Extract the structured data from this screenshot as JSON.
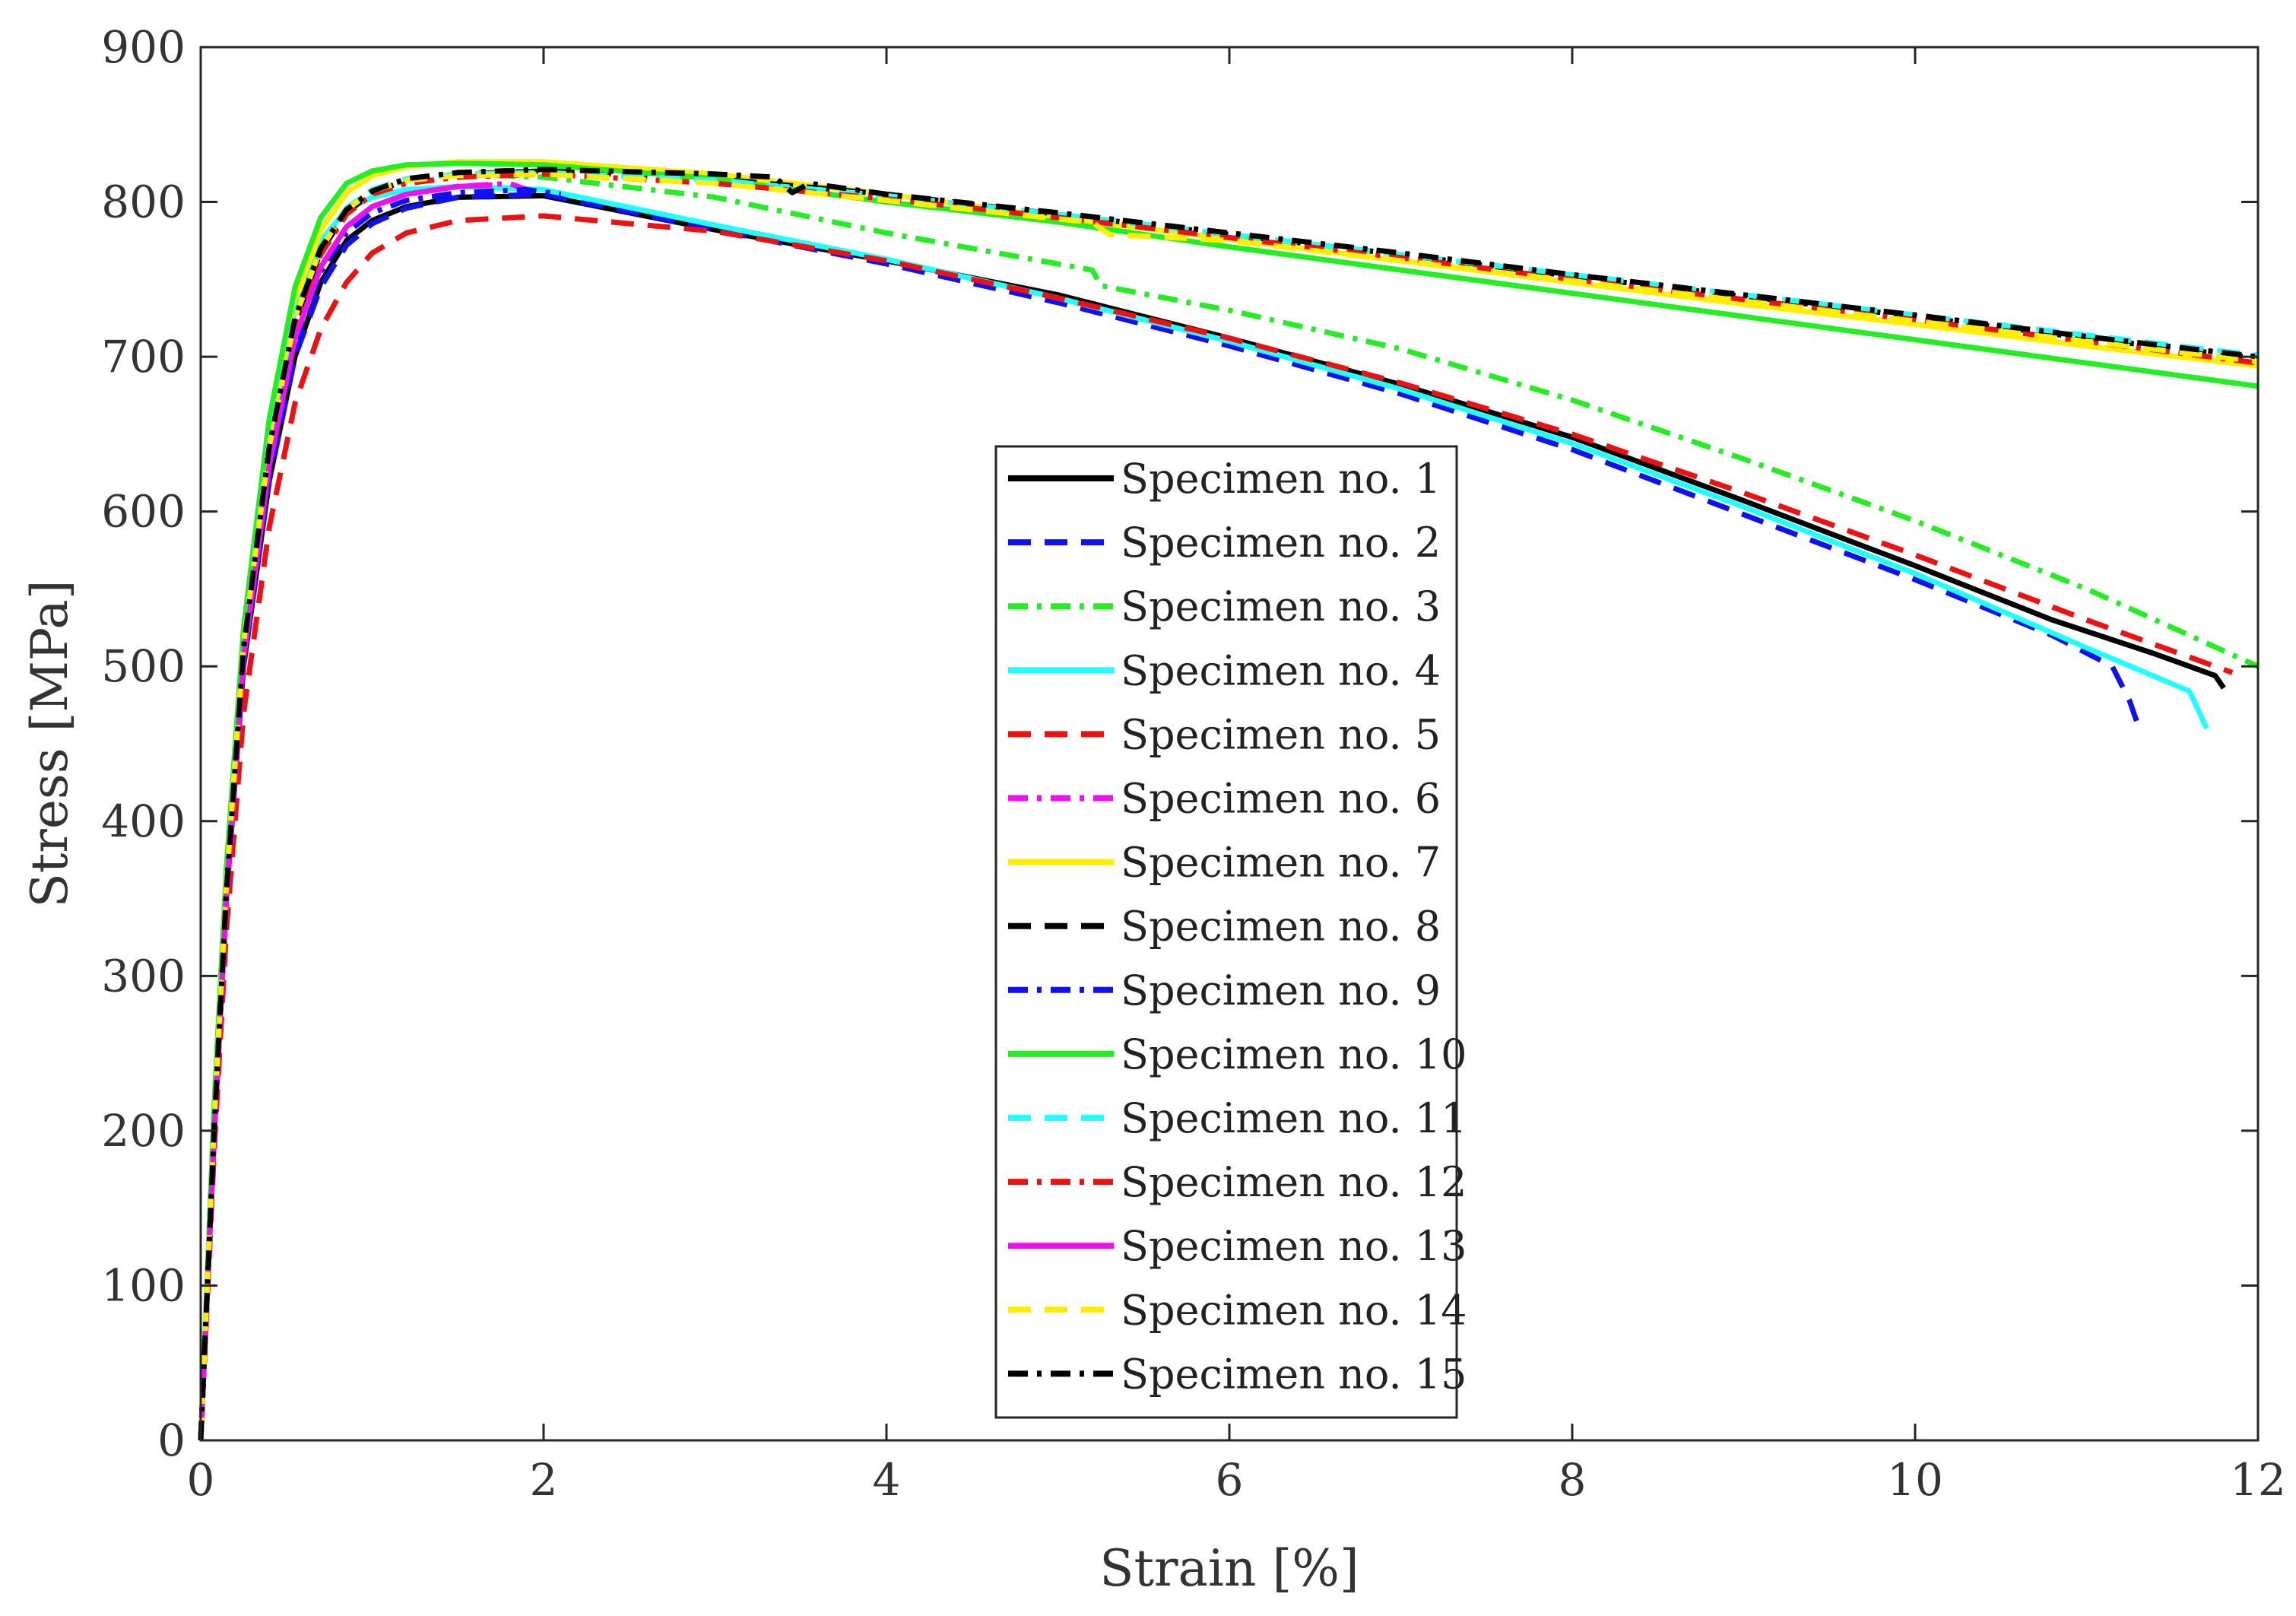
{
  "chart_data": {
    "type": "line",
    "title": "",
    "xlabel": "Strain [%]",
    "ylabel": "Stress [MPa]",
    "xlim": [
      0,
      12
    ],
    "ylim": [
      0,
      900
    ],
    "xticks": [
      0,
      2,
      4,
      6,
      8,
      10,
      12
    ],
    "yticks": [
      0,
      100,
      200,
      300,
      400,
      500,
      600,
      700,
      800,
      900
    ],
    "grid": false,
    "legend_position": "center",
    "series": [
      {
        "name": "Specimen no. 1",
        "color": "#000000",
        "dash": "solid",
        "x": [
          0,
          0.08,
          0.15,
          0.25,
          0.4,
          0.55,
          0.7,
          0.85,
          1.0,
          1.2,
          1.5,
          2.0,
          3.0,
          4.0,
          5.0,
          6.0,
          7.0,
          8.0,
          9.0,
          10.0,
          10.8,
          11.4,
          11.75,
          11.8
        ],
        "y": [
          0,
          200,
          350,
          500,
          620,
          700,
          748,
          775,
          788,
          797,
          803,
          804,
          782,
          762,
          740,
          712,
          682,
          648,
          607,
          565,
          530,
          508,
          494,
          486
        ]
      },
      {
        "name": "Specimen no. 2",
        "color": "#1010f0",
        "dash": "dashed",
        "x": [
          0,
          0.08,
          0.15,
          0.25,
          0.4,
          0.55,
          0.7,
          0.85,
          1.0,
          1.2,
          1.5,
          2.0,
          3.0,
          4.0,
          5.0,
          6.0,
          7.0,
          8.0,
          9.0,
          10.0,
          10.8,
          11.15,
          11.25,
          11.3
        ],
        "y": [
          0,
          200,
          350,
          500,
          620,
          700,
          745,
          772,
          786,
          796,
          803,
          805,
          782,
          760,
          735,
          707,
          676,
          640,
          598,
          556,
          520,
          500,
          478,
          462
        ]
      },
      {
        "name": "Specimen no. 3",
        "color": "#22ee22",
        "dash": "dashdot",
        "x": [
          0,
          0.08,
          0.15,
          0.25,
          0.4,
          0.55,
          0.7,
          0.85,
          1.0,
          1.2,
          1.5,
          2.0,
          3.0,
          4.0,
          5.0,
          5.2,
          5.25,
          6.0,
          7.0,
          8.0,
          9.0,
          10.0,
          11.0,
          12.0
        ],
        "y": [
          0,
          210,
          360,
          510,
          640,
          725,
          768,
          795,
          808,
          814,
          818,
          816,
          803,
          780,
          760,
          756,
          746,
          730,
          705,
          672,
          634,
          594,
          550,
          500
        ]
      },
      {
        "name": "Specimen no. 4",
        "color": "#22ffff",
        "dash": "solid",
        "x": [
          0,
          0.08,
          0.15,
          0.25,
          0.4,
          0.55,
          0.7,
          0.85,
          1.0,
          1.2,
          1.5,
          2.0,
          3.0,
          4.0,
          5.0,
          6.0,
          7.0,
          8.0,
          9.0,
          10.0,
          11.0,
          11.6,
          11.7
        ],
        "y": [
          0,
          210,
          360,
          515,
          645,
          730,
          775,
          795,
          803,
          808,
          810,
          808,
          785,
          763,
          738,
          710,
          679,
          644,
          603,
          560,
          512,
          484,
          460
        ]
      },
      {
        "name": "Specimen no. 5",
        "color": "#ee1111",
        "dash": "dashed",
        "x": [
          0,
          0.08,
          0.15,
          0.25,
          0.4,
          0.55,
          0.7,
          0.85,
          1.0,
          1.2,
          1.5,
          2.0,
          3.0,
          4.0,
          5.0,
          6.0,
          7.0,
          8.0,
          9.0,
          10.0,
          11.0,
          11.85
        ],
        "y": [
          0,
          190,
          330,
          470,
          590,
          670,
          718,
          748,
          767,
          780,
          788,
          791,
          781,
          762,
          738,
          712,
          683,
          650,
          612,
          572,
          530,
          496
        ]
      },
      {
        "name": "Specimen no. 6",
        "color": "#ee11ee",
        "dash": "dashdot",
        "x": [
          0,
          0.08,
          0.15,
          0.25,
          0.4,
          0.55,
          0.7,
          0.85,
          1.0,
          1.2,
          1.5,
          1.8,
          1.9
        ],
        "y": [
          0,
          200,
          350,
          505,
          630,
          712,
          758,
          784,
          797,
          805,
          810,
          812,
          808
        ]
      },
      {
        "name": "Specimen no. 7",
        "color": "#ffee00",
        "dash": "solid",
        "x": [
          0,
          0.08,
          0.15,
          0.25,
          0.4,
          0.55,
          0.7,
          0.85,
          1.0,
          1.2,
          1.5,
          2.0,
          3.0,
          4.0,
          5.0,
          6.0,
          7.0,
          8.0,
          9.0,
          10.0,
          11.0,
          12.0
        ],
        "y": [
          0,
          215,
          365,
          520,
          650,
          735,
          782,
          806,
          817,
          823,
          826,
          826,
          818,
          805,
          790,
          776,
          762,
          748,
          734,
          721,
          707,
          694
        ]
      },
      {
        "name": "Specimen no. 8",
        "color": "#000000",
        "dash": "dashed",
        "x": [
          0,
          0.08,
          0.15,
          0.25,
          0.4,
          0.55,
          0.7,
          0.85,
          1.0,
          1.2,
          1.5,
          2.0,
          3.0,
          4.0,
          5.0,
          6.0,
          7.0,
          8.0,
          9.0,
          10.0,
          11.0,
          12.0
        ],
        "y": [
          0,
          205,
          355,
          510,
          640,
          722,
          768,
          793,
          806,
          814,
          818,
          820,
          815,
          805,
          792,
          779,
          766,
          752,
          739,
          726,
          712,
          699
        ]
      },
      {
        "name": "Specimen no. 9",
        "color": "#1010f0",
        "dash": "dashdot",
        "x": [
          0,
          0.08,
          0.15,
          0.25,
          0.4,
          0.55,
          0.7,
          0.85,
          1.0,
          1.2,
          1.5,
          1.9,
          2.1
        ],
        "y": [
          0,
          200,
          350,
          505,
          628,
          710,
          755,
          780,
          793,
          801,
          806,
          808,
          805
        ]
      },
      {
        "name": "Specimen no. 10",
        "color": "#22ee22",
        "dash": "solid",
        "x": [
          0,
          0.08,
          0.15,
          0.25,
          0.4,
          0.55,
          0.7,
          0.85,
          1.0,
          1.2,
          1.5,
          2.0,
          3.0,
          4.0,
          5.0,
          6.0,
          7.0,
          8.0,
          9.0,
          10.0,
          11.0,
          12.0
        ],
        "y": [
          0,
          220,
          370,
          525,
          660,
          745,
          790,
          812,
          820,
          824,
          825,
          824,
          815,
          800,
          787,
          771,
          756,
          741,
          726,
          711,
          696,
          681
        ]
      },
      {
        "name": "Specimen no. 11",
        "color": "#22ffff",
        "dash": "dashed",
        "x": [
          0,
          0.08,
          0.15,
          0.25,
          0.4,
          0.55,
          0.7,
          0.85,
          1.0,
          1.2,
          1.5,
          2.0,
          3.0,
          4.0,
          5.0,
          6.0,
          7.0,
          8.0,
          9.0,
          10.0,
          11.0,
          12.0
        ],
        "y": [
          0,
          210,
          360,
          515,
          645,
          728,
          772,
          796,
          808,
          815,
          818,
          819,
          814,
          804,
          792,
          779,
          766,
          753,
          740,
          727,
          714,
          701
        ]
      },
      {
        "name": "Specimen no. 12",
        "color": "#ee1111",
        "dash": "dashdot",
        "x": [
          0,
          0.08,
          0.15,
          0.25,
          0.4,
          0.55,
          0.7,
          0.85,
          1.0,
          1.2,
          1.5,
          2.0,
          3.0,
          4.0,
          5.0,
          6.0,
          7.0,
          8.0,
          9.0,
          10.0,
          11.0,
          12.0
        ],
        "y": [
          0,
          205,
          355,
          510,
          638,
          720,
          766,
          792,
          805,
          812,
          816,
          818,
          812,
          802,
          790,
          777,
          764,
          750,
          737,
          724,
          710,
          696
        ]
      },
      {
        "name": "Specimen no. 13",
        "color": "#ee11ee",
        "dash": "solid",
        "x": [
          0,
          0.08,
          0.15,
          0.25,
          0.4,
          0.55,
          0.7,
          0.85,
          1.0,
          1.2,
          1.5,
          1.7
        ],
        "y": [
          0,
          200,
          350,
          505,
          630,
          712,
          758,
          784,
          797,
          805,
          810,
          811
        ]
      },
      {
        "name": "Specimen no. 14",
        "color": "#ffee00",
        "dash": "dashed",
        "x": [
          0,
          0.08,
          0.15,
          0.25,
          0.4,
          0.55,
          0.7,
          0.85,
          1.0,
          1.2,
          1.5,
          2.0,
          3.0,
          4.0,
          5.0,
          5.2,
          5.3,
          6.0,
          7.0,
          8.0,
          9.0,
          10.0,
          11.0,
          12.0
        ],
        "y": [
          0,
          210,
          360,
          515,
          642,
          725,
          770,
          795,
          807,
          814,
          817,
          818,
          812,
          801,
          789,
          787,
          779,
          775,
          762,
          749,
          736,
          723,
          710,
          697
        ]
      },
      {
        "name": "Specimen no. 15",
        "color": "#000000",
        "dash": "dashdot",
        "x": [
          0,
          0.08,
          0.15,
          0.25,
          0.4,
          0.55,
          0.7,
          0.85,
          1.0,
          1.2,
          1.5,
          2.0,
          3.0,
          3.35,
          3.45,
          3.55,
          4.0,
          5.0,
          6.0,
          7.0,
          8.0,
          9.0,
          10.0,
          11.0,
          12.0
        ],
        "y": [
          0,
          205,
          355,
          512,
          642,
          725,
          770,
          795,
          807,
          815,
          819,
          821,
          818,
          816,
          806,
          812,
          805,
          793,
          780,
          767,
          753,
          740,
          727,
          713,
          700
        ]
      }
    ]
  }
}
